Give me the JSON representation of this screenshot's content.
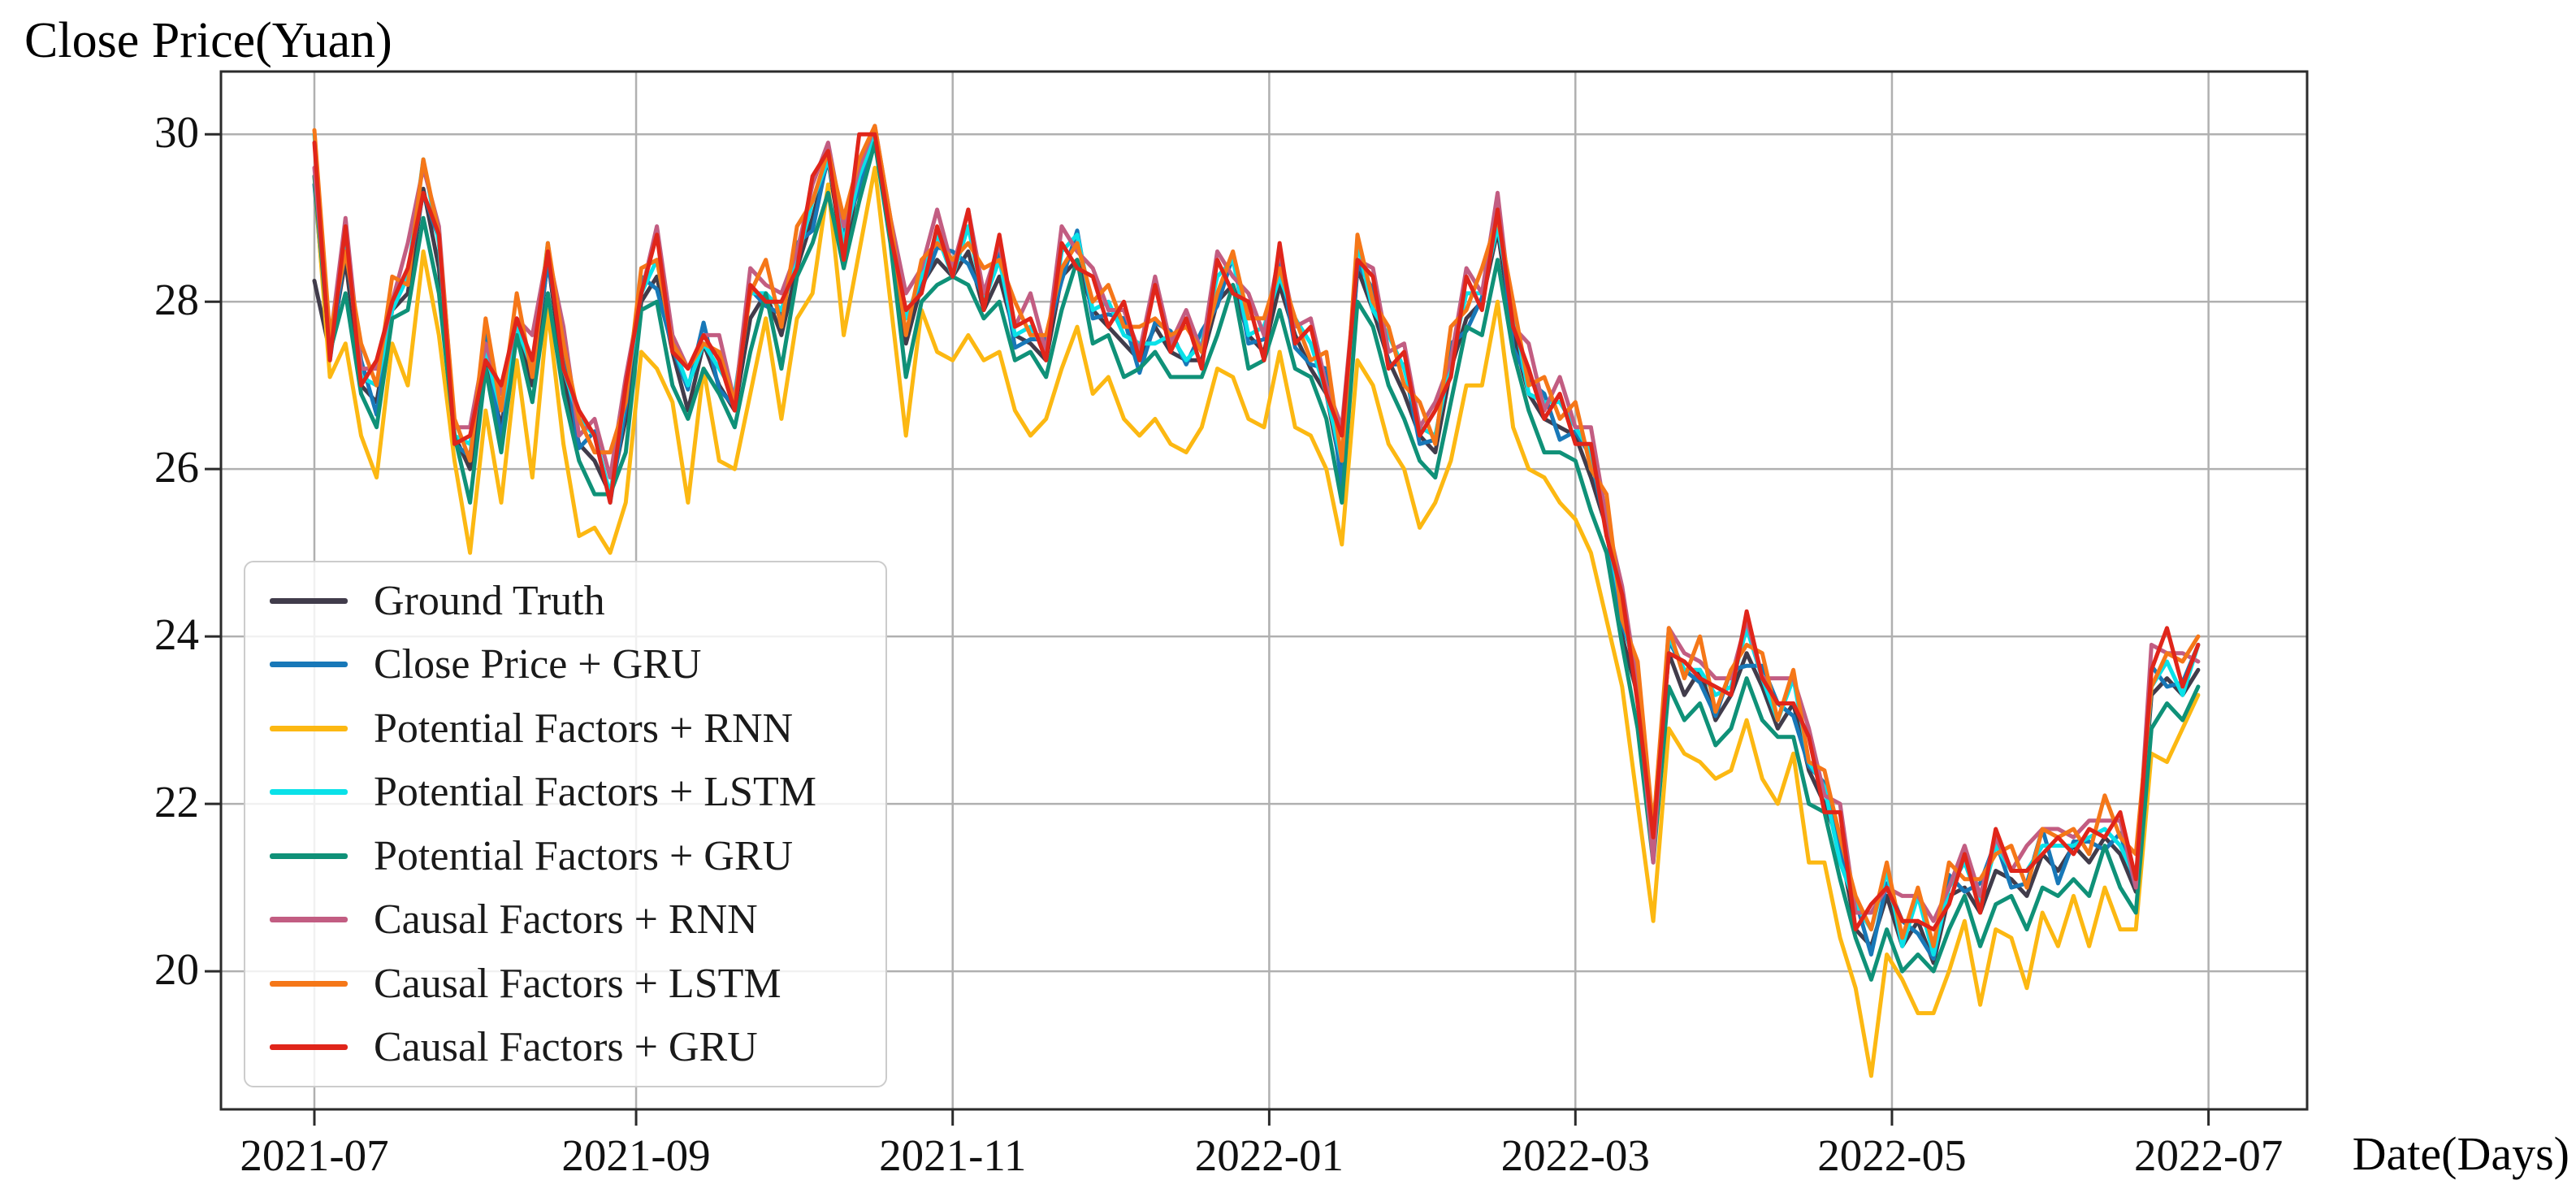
{
  "chart_data": {
    "type": "line",
    "title": "Close Price(Yuan)",
    "ylabel": "Close Price(Yuan)",
    "xlabel": "Date(Days)",
    "x_unit": "calendar days since 2021-07-01, sampled every 3 days",
    "grid": true,
    "legend_position": "lower-left",
    "xlim": [
      -18,
      384
    ],
    "ylim": [
      18.35,
      30.75
    ],
    "y_ticks": [
      20,
      22,
      24,
      26,
      28,
      30
    ],
    "x_ticks": [
      {
        "day": 0,
        "label": "2021-07"
      },
      {
        "day": 62,
        "label": "2021-09"
      },
      {
        "day": 123,
        "label": "2021-11"
      },
      {
        "day": 184,
        "label": "2022-01"
      },
      {
        "day": 243,
        "label": "2022-03"
      },
      {
        "day": 304,
        "label": "2022-05"
      },
      {
        "day": 365,
        "label": "2022-07"
      }
    ],
    "style": {
      "grid_color": "#b0b0b0",
      "axis_color": "#2b2b2b",
      "line_width": 5
    },
    "x": [
      0,
      3,
      6,
      9,
      12,
      15,
      18,
      21,
      24,
      27,
      30,
      33,
      36,
      39,
      42,
      45,
      48,
      51,
      54,
      57,
      60,
      63,
      66,
      69,
      72,
      75,
      78,
      81,
      84,
      87,
      90,
      93,
      96,
      99,
      102,
      105,
      108,
      111,
      114,
      117,
      120,
      123,
      126,
      129,
      132,
      135,
      138,
      141,
      144,
      147,
      150,
      153,
      156,
      159,
      162,
      165,
      168,
      171,
      174,
      177,
      180,
      183,
      186,
      189,
      192,
      195,
      198,
      201,
      204,
      207,
      210,
      213,
      216,
      219,
      222,
      225,
      228,
      231,
      234,
      237,
      240,
      243,
      246,
      249,
      252,
      255,
      258,
      261,
      264,
      267,
      270,
      273,
      276,
      279,
      282,
      285,
      288,
      291,
      294,
      297,
      300,
      303,
      306,
      309,
      312,
      315,
      318,
      321,
      324,
      327,
      330,
      333,
      336,
      339,
      342,
      345,
      348,
      351,
      354,
      357,
      360,
      363
    ],
    "series": [
      {
        "name": "Ground Truth",
        "color": "#413c4b",
        "values": [
          28.25,
          27.4,
          28.5,
          27.0,
          26.8,
          27.9,
          28.1,
          29.35,
          28.4,
          26.4,
          26.0,
          27.3,
          26.5,
          27.7,
          27.0,
          28.5,
          27.1,
          26.3,
          26.1,
          25.7,
          26.6,
          28.0,
          28.3,
          27.4,
          26.7,
          27.5,
          27.0,
          26.7,
          27.8,
          28.1,
          27.6,
          28.4,
          29.0,
          29.7,
          28.5,
          29.5,
          30.0,
          28.9,
          27.5,
          28.2,
          28.5,
          28.3,
          28.6,
          27.9,
          28.3,
          27.6,
          27.5,
          27.3,
          28.3,
          28.5,
          27.9,
          27.7,
          27.5,
          27.3,
          27.7,
          27.4,
          27.3,
          27.3,
          28.0,
          28.2,
          27.6,
          27.4,
          28.2,
          27.6,
          27.2,
          26.9,
          25.95,
          28.4,
          27.9,
          27.3,
          26.9,
          26.4,
          26.2,
          27.2,
          27.8,
          28.0,
          28.85,
          27.6,
          26.9,
          26.6,
          26.5,
          26.4,
          25.9,
          25.3,
          24.0,
          23.3,
          21.6,
          23.8,
          23.3,
          23.6,
          23.0,
          23.3,
          23.8,
          23.4,
          22.9,
          23.2,
          22.4,
          22.0,
          21.5,
          20.5,
          20.3,
          20.9,
          20.3,
          20.6,
          20.1,
          20.9,
          21.0,
          20.7,
          21.2,
          21.1,
          20.9,
          21.4,
          21.2,
          21.5,
          21.3,
          21.6,
          21.4,
          20.95,
          23.3,
          23.5,
          23.3,
          23.6
        ]
      },
      {
        "name": "Close Price + GRU",
        "color": "#1878b8",
        "values": [
          29.4,
          27.3,
          28.65,
          27.3,
          26.65,
          27.95,
          28.35,
          29.3,
          28.75,
          26.3,
          26.15,
          27.6,
          26.35,
          27.75,
          27.25,
          28.45,
          27.45,
          26.25,
          26.45,
          25.6,
          26.75,
          28.3,
          28.15,
          27.45,
          26.95,
          27.75,
          26.95,
          26.75,
          28.15,
          27.95,
          27.85,
          28.7,
          28.85,
          29.75,
          28.85,
          29.35,
          30.05,
          28.85,
          27.85,
          28.15,
          28.65,
          28.6,
          28.45,
          28.05,
          28.6,
          27.45,
          27.55,
          27.55,
          28.25,
          28.85,
          27.8,
          27.85,
          27.8,
          27.15,
          27.75,
          27.65,
          27.25,
          27.65,
          27.95,
          28.55,
          27.5,
          27.55,
          28.5,
          27.45,
          27.25,
          27.2,
          25.8,
          28.45,
          28.15,
          27.25,
          27.25,
          26.3,
          26.35,
          27.5,
          27.65,
          28.05,
          29.2,
          27.45,
          27.05,
          26.9,
          26.35,
          26.45,
          26.15,
          25.25,
          24.15,
          23.6,
          21.45,
          23.95,
          23.6,
          23.45,
          23.05,
          23.6,
          23.65,
          23.65,
          23.2,
          23.05,
          22.45,
          22.25,
          21.45,
          20.85,
          20.2,
          21.05,
          20.6,
          20.45,
          20.15,
          21.15,
          20.95,
          21.05,
          21.55,
          21.0,
          21.05,
          21.7,
          21.05,
          21.55,
          21.55,
          21.45,
          21.65,
          21.0,
          23.65,
          23.4,
          23.45,
          23.9
        ]
      },
      {
        "name": "Potential Factors + RNN",
        "color": "#fcb812",
        "values": [
          29.5,
          27.1,
          27.5,
          26.4,
          25.9,
          27.5,
          27.0,
          28.6,
          27.6,
          26.1,
          25.0,
          26.7,
          25.6,
          27.3,
          25.9,
          27.9,
          26.3,
          25.2,
          25.3,
          25.0,
          25.6,
          27.4,
          27.2,
          26.8,
          25.6,
          27.2,
          26.1,
          26.0,
          26.9,
          27.8,
          26.6,
          27.8,
          28.1,
          29.4,
          27.6,
          28.6,
          29.6,
          28.0,
          26.4,
          27.9,
          27.4,
          27.3,
          27.6,
          27.3,
          27.4,
          26.7,
          26.4,
          26.6,
          27.2,
          27.7,
          26.9,
          27.1,
          26.6,
          26.4,
          26.6,
          26.3,
          26.2,
          26.5,
          27.2,
          27.1,
          26.6,
          26.5,
          27.4,
          26.5,
          26.4,
          26.0,
          25.1,
          27.3,
          27.0,
          26.3,
          26.0,
          25.3,
          25.6,
          26.1,
          27.0,
          27.0,
          28.0,
          26.5,
          26.0,
          25.9,
          25.6,
          25.4,
          25.0,
          24.2,
          23.4,
          22.0,
          20.6,
          22.9,
          22.6,
          22.5,
          22.3,
          22.4,
          23.0,
          22.3,
          22.0,
          22.6,
          21.3,
          21.3,
          20.4,
          19.8,
          18.75,
          20.2,
          19.9,
          19.5,
          19.5,
          20.0,
          20.6,
          19.6,
          20.5,
          20.4,
          19.8,
          20.7,
          20.3,
          20.9,
          20.3,
          21.0,
          20.5,
          20.5,
          22.6,
          22.5,
          22.9,
          23.3
        ]
      },
      {
        "name": "Potential Factors + LSTM",
        "color": "#0ae1e8",
        "values": [
          30.0,
          27.4,
          28.8,
          27.1,
          27.0,
          27.9,
          28.3,
          29.7,
          28.7,
          26.4,
          26.3,
          27.4,
          26.7,
          27.7,
          27.2,
          28.7,
          27.2,
          26.6,
          26.4,
          25.7,
          26.9,
          28.1,
          28.5,
          27.5,
          27.0,
          27.5,
          27.2,
          26.9,
          28.1,
          28.1,
          27.9,
          28.5,
          29.2,
          29.7,
          28.7,
          29.5,
          30.0,
          28.9,
          27.8,
          28.3,
          28.8,
          28.3,
          28.9,
          28.0,
          28.5,
          27.6,
          27.7,
          27.4,
          28.6,
          28.8,
          27.9,
          28.0,
          27.6,
          27.5,
          27.5,
          27.6,
          27.3,
          27.5,
          28.3,
          28.5,
          27.6,
          27.7,
          28.3,
          27.8,
          27.5,
          26.9,
          26.1,
          28.7,
          27.9,
          27.6,
          27.2,
          26.5,
          26.4,
          27.3,
          28.1,
          28.1,
          28.9,
          27.9,
          26.9,
          26.8,
          26.8,
          26.5,
          26.2,
          25.3,
          24.3,
          23.4,
          21.7,
          24.0,
          23.6,
          23.6,
          23.3,
          23.4,
          24.1,
          23.5,
          23.0,
          23.5,
          22.5,
          22.2,
          21.3,
          20.8,
          20.5,
          21.2,
          20.3,
          20.9,
          20.2,
          21.0,
          21.3,
          20.8,
          21.5,
          21.2,
          21.2,
          21.5,
          21.5,
          21.5,
          21.6,
          21.7,
          21.5,
          21.1,
          23.4,
          23.7,
          23.3,
          23.9
        ]
      },
      {
        "name": "Potential Factors + GRU",
        "color": "#0f9178",
        "values": [
          29.5,
          27.4,
          28.1,
          26.9,
          26.5,
          27.8,
          27.9,
          29.0,
          28.1,
          26.4,
          25.6,
          27.2,
          26.2,
          27.6,
          26.8,
          28.1,
          26.9,
          26.1,
          25.7,
          25.7,
          26.2,
          27.9,
          28.0,
          27.0,
          26.6,
          27.2,
          26.9,
          26.5,
          27.4,
          28.1,
          27.2,
          28.3,
          28.7,
          29.3,
          28.4,
          29.2,
          29.9,
          28.7,
          27.1,
          28.0,
          28.2,
          28.3,
          28.2,
          27.8,
          28.0,
          27.3,
          27.4,
          27.1,
          27.9,
          28.5,
          27.5,
          27.6,
          27.1,
          27.2,
          27.4,
          27.1,
          27.1,
          27.1,
          27.6,
          28.2,
          27.2,
          27.3,
          27.9,
          27.2,
          27.1,
          26.6,
          25.6,
          28.0,
          27.7,
          27.0,
          26.6,
          26.1,
          25.9,
          26.8,
          27.7,
          27.6,
          28.5,
          27.4,
          26.7,
          26.2,
          26.2,
          26.1,
          25.5,
          25.0,
          23.9,
          22.9,
          21.3,
          23.4,
          23.0,
          23.2,
          22.7,
          22.9,
          23.5,
          23.0,
          22.8,
          22.8,
          22.0,
          21.9,
          21.1,
          20.4,
          19.9,
          20.5,
          20.0,
          20.2,
          20.0,
          20.5,
          20.9,
          20.3,
          20.8,
          20.9,
          20.5,
          21.0,
          20.9,
          21.1,
          20.9,
          21.5,
          21.0,
          20.7,
          22.9,
          23.2,
          23.0,
          23.4
        ]
      },
      {
        "name": "Causal Factors + RNN",
        "color": "#c25d82",
        "values": [
          29.6,
          27.5,
          29.0,
          27.2,
          27.2,
          28.0,
          28.7,
          29.6,
          28.9,
          26.5,
          26.5,
          27.5,
          26.9,
          27.8,
          27.6,
          28.6,
          27.7,
          26.4,
          26.6,
          25.9,
          27.1,
          28.1,
          28.9,
          27.6,
          27.2,
          27.6,
          27.6,
          26.8,
          28.4,
          28.2,
          28.1,
          28.6,
          29.4,
          29.9,
          28.9,
          29.6,
          30.1,
          29.0,
          28.1,
          28.4,
          29.1,
          28.4,
          29.1,
          28.1,
          28.7,
          27.7,
          28.1,
          27.4,
          28.9,
          28.6,
          28.4,
          27.9,
          27.9,
          27.4,
          28.3,
          27.5,
          27.9,
          27.4,
          28.6,
          28.3,
          28.1,
          27.6,
          28.6,
          27.7,
          27.8,
          27.0,
          26.5,
          28.5,
          28.4,
          27.4,
          27.5,
          26.5,
          26.8,
          27.3,
          28.4,
          28.1,
          29.3,
          27.7,
          27.5,
          26.7,
          27.1,
          26.5,
          26.5,
          25.4,
          24.6,
          23.4,
          21.3,
          24.1,
          23.8,
          23.7,
          23.5,
          23.5,
          24.2,
          23.5,
          23.5,
          23.5,
          22.9,
          22.1,
          22.0,
          20.7,
          20.7,
          21.0,
          20.9,
          20.9,
          20.6,
          21.0,
          21.5,
          20.9,
          21.6,
          21.2,
          21.5,
          21.7,
          21.7,
          21.6,
          21.8,
          21.8,
          21.8,
          21.0,
          23.9,
          23.8,
          23.8,
          23.7
        ]
      },
      {
        "name": "Causal Factors + LSTM",
        "color": "#f57718",
        "values": [
          30.05,
          27.6,
          28.6,
          27.5,
          27.0,
          28.3,
          28.2,
          29.7,
          28.8,
          26.6,
          26.1,
          27.8,
          26.7,
          28.1,
          27.1,
          28.7,
          27.5,
          26.6,
          26.2,
          26.2,
          26.8,
          28.4,
          28.5,
          27.5,
          27.2,
          27.5,
          27.4,
          26.8,
          28.1,
          28.5,
          27.7,
          28.9,
          29.2,
          29.8,
          29.0,
          29.7,
          30.1,
          29.0,
          27.6,
          28.5,
          28.7,
          28.5,
          28.7,
          28.4,
          28.5,
          28.0,
          27.6,
          27.6,
          28.4,
          28.7,
          28.0,
          28.2,
          27.7,
          27.7,
          27.8,
          27.6,
          27.7,
          27.4,
          28.1,
          28.6,
          27.8,
          27.8,
          28.4,
          27.8,
          27.3,
          27.4,
          26.1,
          28.8,
          28.0,
          27.7,
          27.0,
          26.8,
          26.3,
          27.7,
          27.9,
          28.4,
          29.0,
          28.0,
          27.0,
          27.1,
          26.6,
          26.8,
          26.0,
          25.7,
          24.2,
          23.7,
          21.7,
          24.1,
          23.5,
          24.0,
          23.1,
          23.6,
          23.9,
          23.8,
          23.0,
          23.6,
          22.5,
          22.4,
          21.6,
          20.9,
          20.5,
          21.3,
          20.4,
          21.0,
          20.3,
          21.3,
          21.1,
          21.1,
          21.4,
          21.5,
          21.0,
          21.7,
          21.6,
          21.7,
          21.4,
          22.1,
          21.6,
          21.4,
          23.4,
          23.8,
          23.7,
          24.0
        ]
      },
      {
        "name": "Causal Factors + GRU",
        "color": "#e0251a",
        "values": [
          29.9,
          27.3,
          28.9,
          27.0,
          27.3,
          28.0,
          28.4,
          29.3,
          28.8,
          26.3,
          26.4,
          27.3,
          27.0,
          27.8,
          27.3,
          28.6,
          27.2,
          26.7,
          26.4,
          25.6,
          27.0,
          28.1,
          28.8,
          27.4,
          27.2,
          27.6,
          27.3,
          26.7,
          28.2,
          28.0,
          28.0,
          28.4,
          29.5,
          29.8,
          28.5,
          30.0,
          30.0,
          28.8,
          27.9,
          28.1,
          28.9,
          28.3,
          29.1,
          27.9,
          28.8,
          27.7,
          27.8,
          27.3,
          28.7,
          28.4,
          28.3,
          27.7,
          28.0,
          27.3,
          28.2,
          27.4,
          27.8,
          27.2,
          28.5,
          28.1,
          28.0,
          27.3,
          28.7,
          27.5,
          27.7,
          26.9,
          26.4,
          28.5,
          28.3,
          27.2,
          27.4,
          26.4,
          26.7,
          27.1,
          28.3,
          27.9,
          29.1,
          27.7,
          27.2,
          26.6,
          26.9,
          26.3,
          26.3,
          25.2,
          24.5,
          23.2,
          21.6,
          23.8,
          23.7,
          23.5,
          23.4,
          23.3,
          24.3,
          23.5,
          23.2,
          23.2,
          22.8,
          21.9,
          21.9,
          20.5,
          20.8,
          21.0,
          20.6,
          20.6,
          20.5,
          20.8,
          21.4,
          20.7,
          21.7,
          21.2,
          21.2,
          21.4,
          21.6,
          21.4,
          21.7,
          21.6,
          21.9,
          21.1,
          23.6,
          24.1,
          23.4,
          23.9
        ]
      }
    ]
  }
}
